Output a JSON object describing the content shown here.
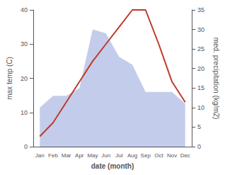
{
  "chart_data": {
    "type": "line",
    "xlabel": "date (month)",
    "ylabel": "max temp (C)",
    "y2label": "med. precipitation (kg/m2)",
    "categories": [
      "Jan",
      "Feb",
      "Mar",
      "Apr",
      "May",
      "Jun",
      "Jul",
      "Aug",
      "Sep",
      "Oct",
      "Nov",
      "Dec"
    ],
    "series": [
      {
        "type": "area",
        "axis": "y2",
        "color": "#b8c4e8",
        "values": [
          10,
          13,
          13,
          15,
          30,
          29,
          23,
          21,
          14,
          14,
          14,
          11
        ]
      },
      {
        "type": "line",
        "color": "#c0392b",
        "values": [
          3,
          7,
          13,
          19,
          25,
          30,
          35,
          40,
          40,
          30,
          19,
          13
        ]
      }
    ],
    "ylim": [
      0,
      40
    ],
    "yticks": [
      0,
      10,
      20,
      30,
      40
    ],
    "y2lim": [
      0,
      35
    ],
    "y2ticks": [
      0,
      5,
      10,
      15,
      20,
      25,
      30,
      35
    ],
    "grid": false
  }
}
